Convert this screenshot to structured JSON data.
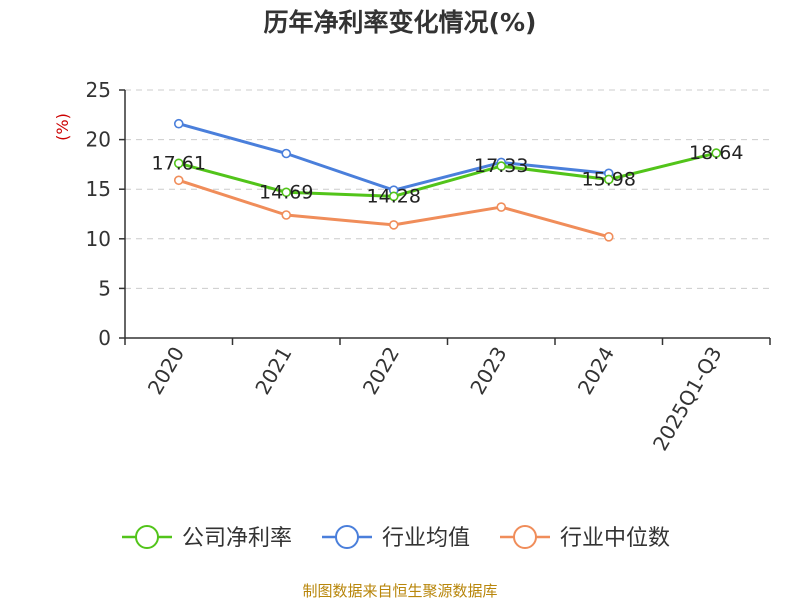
{
  "chart_data": {
    "type": "line",
    "title": "历年净利率变化情况(%)",
    "ylabel": "(%)",
    "xlabel": "",
    "categories": [
      "2020",
      "2021",
      "2022",
      "2023",
      "2024",
      "2025Q1-Q3"
    ],
    "ylim": [
      0,
      25
    ],
    "yticks": [
      "0",
      "5",
      "10",
      "15",
      "20",
      "25"
    ],
    "grid": true,
    "legend_position": "bottom",
    "series": [
      {
        "name": "公司净利率",
        "color": "#52c41a",
        "values": [
          17.61,
          14.69,
          14.28,
          17.33,
          15.98,
          18.64
        ],
        "labels": [
          "17.61",
          "14.69",
          "14.28",
          "17.33",
          "15.98",
          "18.64"
        ]
      },
      {
        "name": "行业均值",
        "color": "#4a7fdb",
        "values": [
          21.6,
          18.6,
          14.9,
          17.7,
          16.6,
          null
        ]
      },
      {
        "name": "行业中位数",
        "color": "#f08d5a",
        "values": [
          15.9,
          12.4,
          11.4,
          13.2,
          10.2,
          null
        ]
      }
    ]
  },
  "footer": {
    "source": "制图数据来自恒生聚源数据库"
  }
}
